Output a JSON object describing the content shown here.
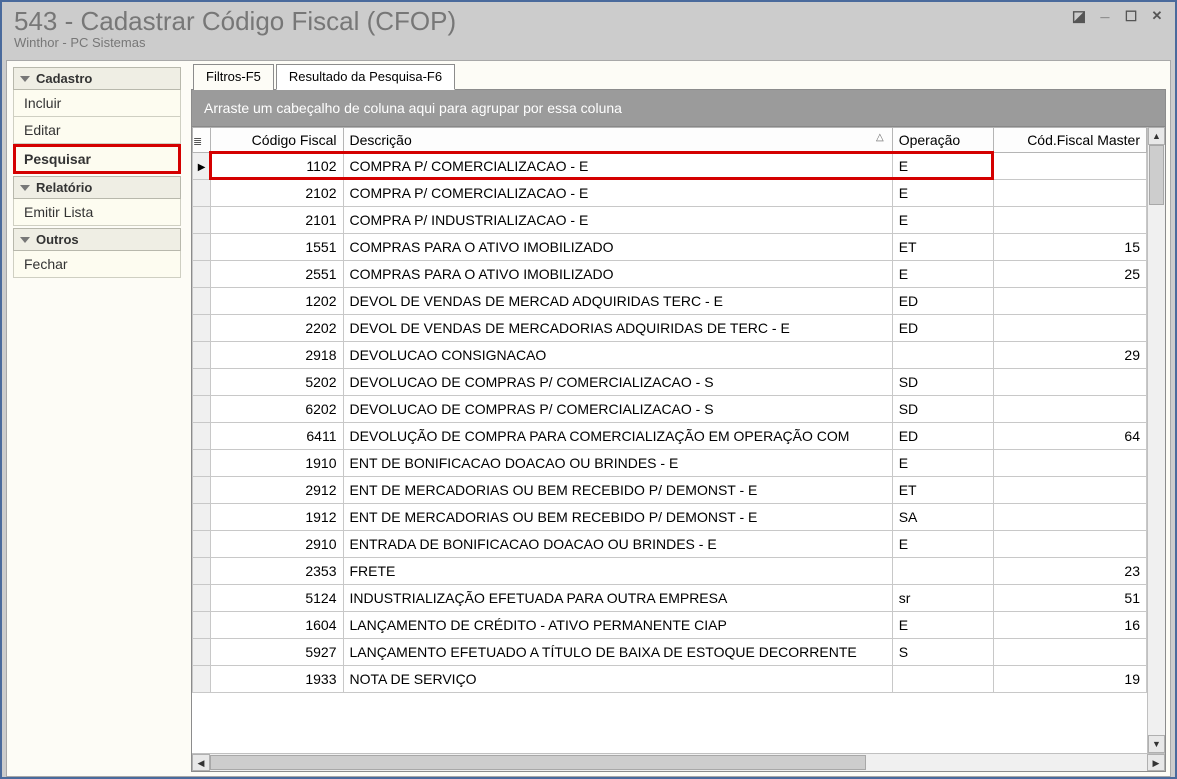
{
  "window": {
    "title": "543 - Cadastrar Código Fiscal (CFOP)",
    "subtitle": "Winthor - PC Sistemas"
  },
  "sidebar": {
    "groups": [
      {
        "label": "Cadastro",
        "items": [
          {
            "label": "Incluir",
            "highlight": false
          },
          {
            "label": "Editar",
            "highlight": false
          },
          {
            "label": "Pesquisar",
            "highlight": true
          }
        ]
      },
      {
        "label": "Relatório",
        "items": [
          {
            "label": "Emitir Lista",
            "highlight": false
          }
        ]
      },
      {
        "label": "Outros",
        "items": [
          {
            "label": "Fechar",
            "highlight": false
          }
        ]
      }
    ]
  },
  "tabs": [
    {
      "label": "Filtros-F5",
      "active": false
    },
    {
      "label": "Resultado da Pesquisa-F6",
      "active": true
    }
  ],
  "groupbar_text": "Arraste um cabeçalho de coluna aqui para agrupar por essa coluna",
  "grid": {
    "columns": [
      {
        "label": "Código Fiscal",
        "key": "codigo",
        "class": "col-codigo"
      },
      {
        "label": "Descrição",
        "key": "descricao",
        "class": "col-desc",
        "sorted": true
      },
      {
        "label": "Operação",
        "key": "operacao",
        "class": "col-op"
      },
      {
        "label": "Cód.Fiscal Master",
        "key": "master",
        "class": "col-master"
      }
    ],
    "rows": [
      {
        "codigo": "1102",
        "descricao": "COMPRA P/ COMERCIALIZACAO - E",
        "operacao": "E",
        "master": "",
        "pointer": true,
        "highlight": true
      },
      {
        "codigo": "2102",
        "descricao": "COMPRA P/ COMERCIALIZACAO - E",
        "operacao": "E",
        "master": ""
      },
      {
        "codigo": "2101",
        "descricao": "COMPRA P/ INDUSTRIALIZACAO - E",
        "operacao": "E",
        "master": ""
      },
      {
        "codigo": "1551",
        "descricao": "COMPRAS PARA O ATIVO IMOBILIZADO",
        "operacao": "ET",
        "master": "15"
      },
      {
        "codigo": "2551",
        "descricao": "COMPRAS PARA O ATIVO IMOBILIZADO",
        "operacao": "E",
        "master": "25"
      },
      {
        "codigo": "1202",
        "descricao": "DEVOL DE VENDAS DE MERCAD ADQUIRIDAS TERC - E",
        "operacao": "ED",
        "master": ""
      },
      {
        "codigo": "2202",
        "descricao": "DEVOL DE VENDAS DE MERCADORIAS ADQUIRIDAS DE TERC - E",
        "operacao": "ED",
        "master": ""
      },
      {
        "codigo": "2918",
        "descricao": "DEVOLUCAO CONSIGNACAO",
        "operacao": "",
        "master": "29"
      },
      {
        "codigo": "5202",
        "descricao": "DEVOLUCAO DE COMPRAS P/ COMERCIALIZACAO - S",
        "operacao": "SD",
        "master": ""
      },
      {
        "codigo": "6202",
        "descricao": "DEVOLUCAO DE COMPRAS P/ COMERCIALIZACAO - S",
        "operacao": "SD",
        "master": ""
      },
      {
        "codigo": "6411",
        "descricao": "DEVOLUÇÃO DE COMPRA PARA COMERCIALIZAÇÃO EM OPERAÇÃO COM",
        "operacao": "ED",
        "master": "64"
      },
      {
        "codigo": "1910",
        "descricao": "ENT DE BONIFICACAO DOACAO OU BRINDES - E",
        "operacao": "E",
        "master": ""
      },
      {
        "codigo": "2912",
        "descricao": "ENT DE MERCADORIAS OU BEM RECEBIDO P/ DEMONST -  E",
        "operacao": "ET",
        "master": ""
      },
      {
        "codigo": "1912",
        "descricao": "ENT DE MERCADORIAS OU BEM RECEBIDO P/ DEMONST - E",
        "operacao": "SA",
        "master": ""
      },
      {
        "codigo": "2910",
        "descricao": "ENTRADA DE BONIFICACAO DOACAO OU BRINDES - E",
        "operacao": "E",
        "master": ""
      },
      {
        "codigo": "2353",
        "descricao": "FRETE",
        "operacao": "",
        "master": "23"
      },
      {
        "codigo": "5124",
        "descricao": "INDUSTRIALIZAÇÃO EFETUADA PARA OUTRA EMPRESA",
        "operacao": "sr",
        "master": "51"
      },
      {
        "codigo": "1604",
        "descricao": "LANÇAMENTO DE CRÉDITO - ATIVO PERMANENTE CIAP",
        "operacao": "E",
        "master": "16"
      },
      {
        "codigo": "5927",
        "descricao": "LANÇAMENTO EFETUADO A TÍTULO DE BAIXA DE ESTOQUE DECORRENTE",
        "operacao": "S",
        "master": ""
      },
      {
        "codigo": "1933",
        "descricao": "NOTA DE SERVIÇO",
        "operacao": "",
        "master": "19"
      }
    ]
  },
  "colors": {
    "border_outer": "#4a6a9c",
    "titlebar_bg": "#cccccc",
    "title_text": "#777777",
    "highlight_border": "#d40000",
    "groupbar_bg": "#9b9b9b",
    "grid_border": "#c8c8c8"
  }
}
